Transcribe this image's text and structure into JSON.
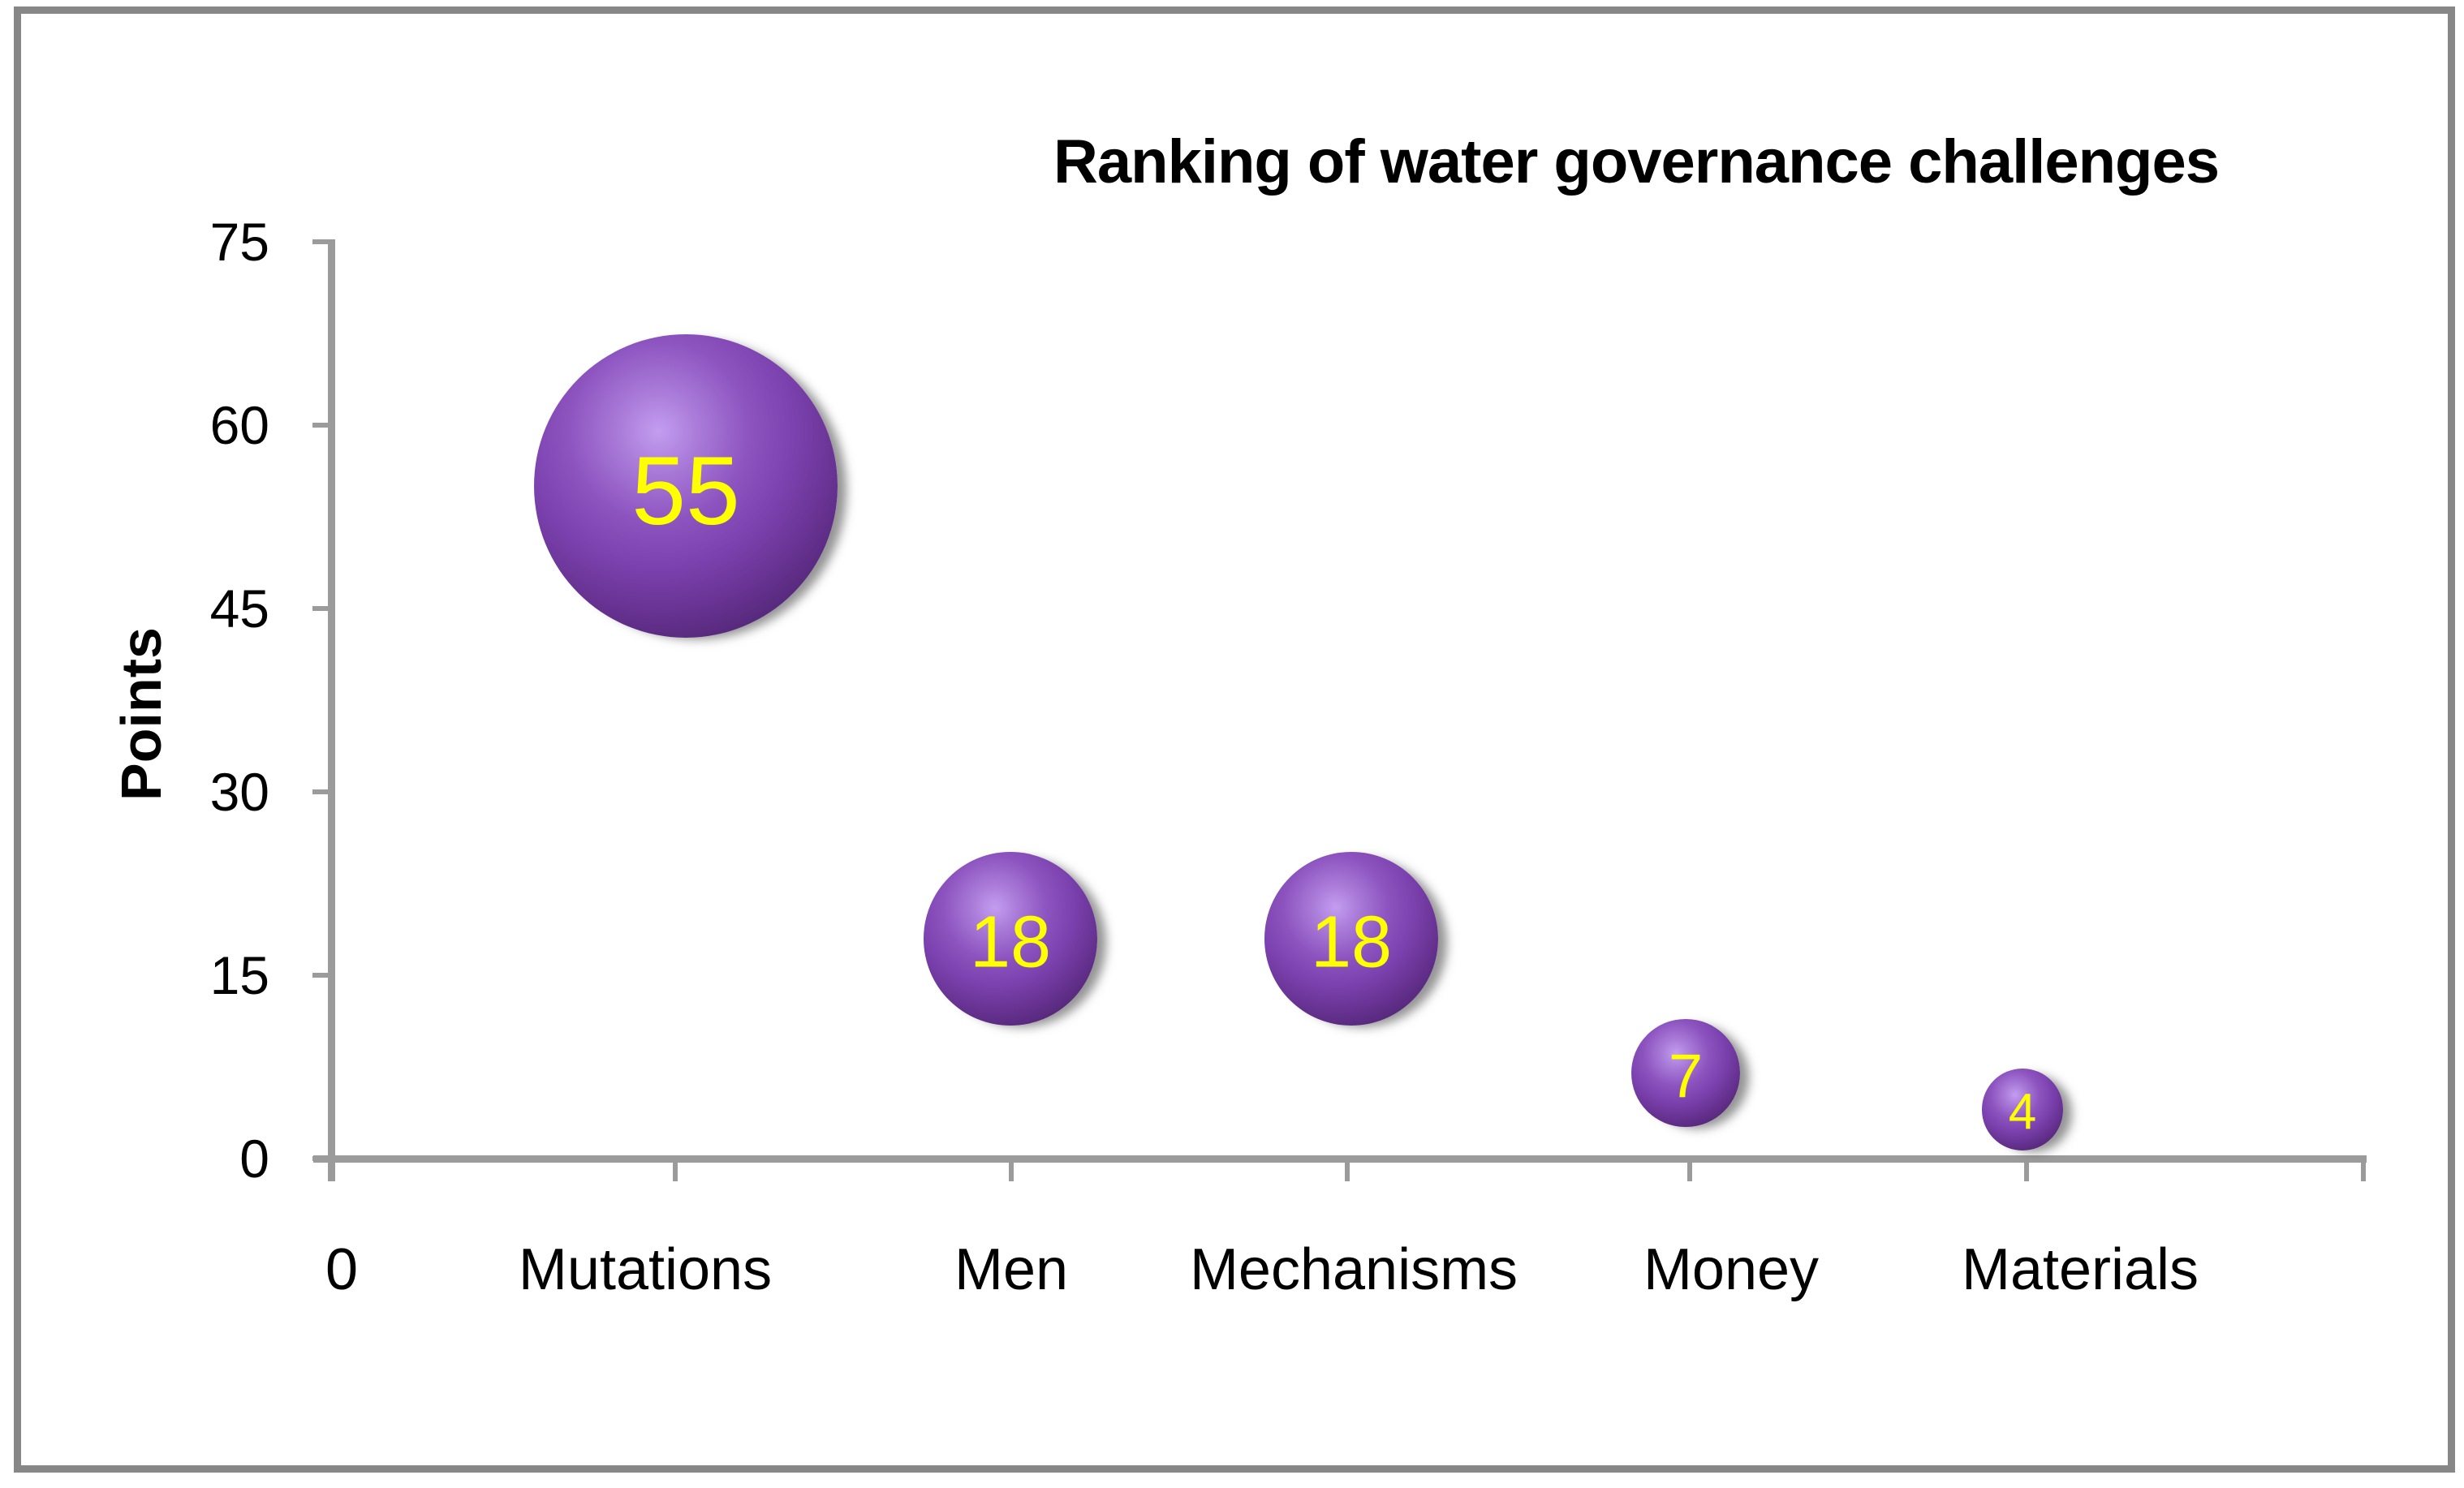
{
  "title": "Ranking of water governance challenges",
  "y_axis": {
    "label": "Points",
    "tick_labels": [
      "75",
      "60",
      "45",
      "30",
      "15",
      "0"
    ]
  },
  "x_axis": {
    "category_labels": [
      "0",
      "Mutations",
      "Men",
      "Mechanisms",
      "Money",
      "Materials"
    ]
  },
  "bubbles": [
    {
      "category": "Mutations",
      "value": 55,
      "label": "55"
    },
    {
      "category": "Men",
      "value": 18,
      "label": "18"
    },
    {
      "category": "Mechanisms",
      "value": 18,
      "label": "18"
    },
    {
      "category": "Money",
      "value": 7,
      "label": "7"
    },
    {
      "category": "Materials",
      "value": 4,
      "label": "4"
    }
  ],
  "colors": {
    "bubble_base": "#7b41ae",
    "bubble_highlight": "#c39df0",
    "bubble_dark": "#40205c",
    "value_label": "#ffff00",
    "axis": "#9b9b9b",
    "frame_border": "#878787",
    "text": "#000000",
    "background": "#ffffff"
  },
  "chart_data": {
    "type": "scatter",
    "subtype": "bubble",
    "title": "Ranking of water governance challenges",
    "categories": [
      "Mutations",
      "Men",
      "Mechanisms",
      "Money",
      "Materials"
    ],
    "values": [
      55,
      18,
      18,
      7,
      4
    ],
    "bubble_area_proportional_to_value": true,
    "xlabel": "",
    "ylabel": "Points",
    "ylim": [
      0,
      75
    ],
    "yticks": [
      0,
      15,
      30,
      45,
      60,
      75
    ],
    "x_tick_labels": [
      "0",
      "Mutations",
      "Men",
      "Mechanisms",
      "Money",
      "Materials"
    ],
    "grid": false,
    "legend": false,
    "data_labels": "values shown in yellow inside bubbles"
  }
}
